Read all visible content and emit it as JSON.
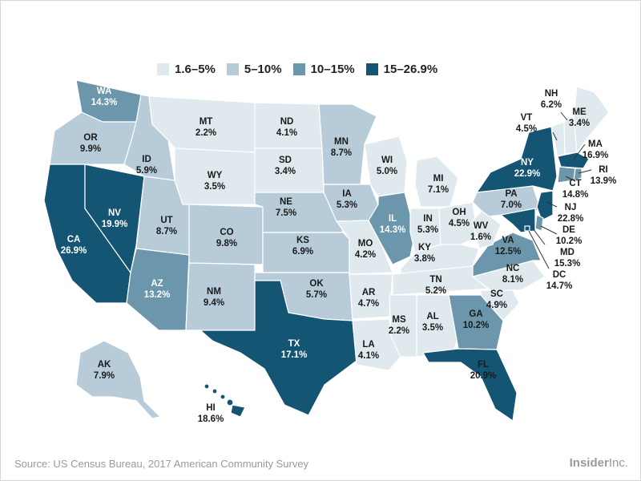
{
  "legend": [
    {
      "label": "1.6–5%",
      "color": "#dfe9ee"
    },
    {
      "label": "5–10%",
      "color": "#b7ccd8"
    },
    {
      "label": "10–15%",
      "color": "#6c96ab"
    },
    {
      "label": "15–26.9%",
      "color": "#155574"
    }
  ],
  "source": "Source: US Census Bureau, 2017 American Community Survey",
  "brand": {
    "name": "Insider",
    "suffix": "Inc."
  },
  "states": [
    {
      "abbr": "WA",
      "value": "14.3%"
    },
    {
      "abbr": "OR",
      "value": "9.9%"
    },
    {
      "abbr": "CA",
      "value": "26.9%"
    },
    {
      "abbr": "NV",
      "value": "19.9%"
    },
    {
      "abbr": "ID",
      "value": "5.9%"
    },
    {
      "abbr": "MT",
      "value": "2.2%"
    },
    {
      "abbr": "WY",
      "value": "3.5%"
    },
    {
      "abbr": "UT",
      "value": "8.7%"
    },
    {
      "abbr": "CO",
      "value": "9.8%"
    },
    {
      "abbr": "AZ",
      "value": "13.2%"
    },
    {
      "abbr": "NM",
      "value": "9.4%"
    },
    {
      "abbr": "ND",
      "value": "4.1%"
    },
    {
      "abbr": "SD",
      "value": "3.4%"
    },
    {
      "abbr": "NE",
      "value": "7.5%"
    },
    {
      "abbr": "KS",
      "value": "6.9%"
    },
    {
      "abbr": "OK",
      "value": "5.7%"
    },
    {
      "abbr": "TX",
      "value": "17.1%"
    },
    {
      "abbr": "MN",
      "value": "8.7%"
    },
    {
      "abbr": "IA",
      "value": "5.3%"
    },
    {
      "abbr": "MO",
      "value": "4.2%"
    },
    {
      "abbr": "AR",
      "value": "4.7%"
    },
    {
      "abbr": "LA",
      "value": "4.1%"
    },
    {
      "abbr": "WI",
      "value": "5.0%"
    },
    {
      "abbr": "IL",
      "value": "14.3%"
    },
    {
      "abbr": "MI",
      "value": "7.1%"
    },
    {
      "abbr": "IN",
      "value": "5.3%"
    },
    {
      "abbr": "OH",
      "value": "4.5%"
    },
    {
      "abbr": "KY",
      "value": "3.8%"
    },
    {
      "abbr": "TN",
      "value": "5.2%"
    },
    {
      "abbr": "MS",
      "value": "2.2%"
    },
    {
      "abbr": "AL",
      "value": "3.5%"
    },
    {
      "abbr": "GA",
      "value": "10.2%"
    },
    {
      "abbr": "FL",
      "value": "20.9%"
    },
    {
      "abbr": "SC",
      "value": "4.9%"
    },
    {
      "abbr": "NC",
      "value": "8.1%"
    },
    {
      "abbr": "VA",
      "value": "12.5%"
    },
    {
      "abbr": "WV",
      "value": "1.6%"
    },
    {
      "abbr": "PA",
      "value": "7.0%"
    },
    {
      "abbr": "NY",
      "value": "22.9%"
    },
    {
      "abbr": "VT",
      "value": "4.5%"
    },
    {
      "abbr": "NH",
      "value": "6.2%"
    },
    {
      "abbr": "ME",
      "value": "3.4%"
    },
    {
      "abbr": "MA",
      "value": "16.9%"
    },
    {
      "abbr": "RI",
      "value": "13.9%"
    },
    {
      "abbr": "CT",
      "value": "14.8%"
    },
    {
      "abbr": "NJ",
      "value": "22.8%"
    },
    {
      "abbr": "DE",
      "value": "10.2%"
    },
    {
      "abbr": "MD",
      "value": "15.3%"
    },
    {
      "abbr": "DC",
      "value": "14.7%"
    },
    {
      "abbr": "AK",
      "value": "7.9%"
    },
    {
      "abbr": "HI",
      "value": "18.6%"
    }
  ]
}
